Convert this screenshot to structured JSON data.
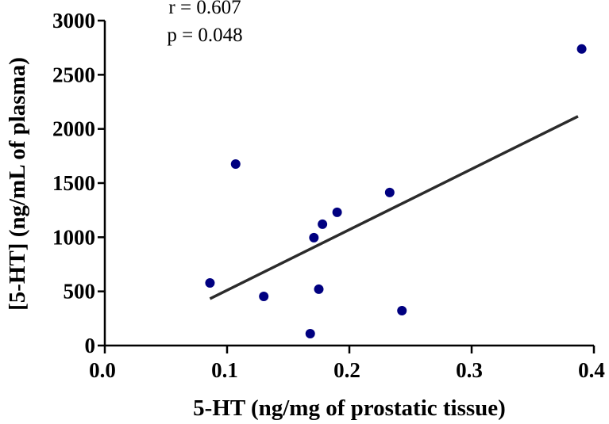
{
  "chart_data": {
    "type": "scatter",
    "xlabel": "5-HT (ng/mg of prostatic tissue)",
    "ylabel": "[5-HT] (ng/mL of plasma)",
    "xlim": [
      0,
      0.4
    ],
    "ylim": [
      0,
      3000
    ],
    "xticks": [
      "0.0",
      "0.1",
      "0.2",
      "0.3",
      "0.4"
    ],
    "xtick_values": [
      0,
      0.1,
      0.2,
      0.3,
      0.4
    ],
    "yticks": [
      "0",
      "500",
      "1000",
      "1500",
      "2000",
      "2500",
      "3000"
    ],
    "ytick_values": [
      0,
      500,
      1000,
      1500,
      2000,
      2500,
      3000
    ],
    "points": [
      {
        "x": 0.086,
        "y": 578
      },
      {
        "x": 0.107,
        "y": 1676
      },
      {
        "x": 0.13,
        "y": 454
      },
      {
        "x": 0.168,
        "y": 110
      },
      {
        "x": 0.171,
        "y": 996
      },
      {
        "x": 0.175,
        "y": 520
      },
      {
        "x": 0.178,
        "y": 1120
      },
      {
        "x": 0.19,
        "y": 1230
      },
      {
        "x": 0.233,
        "y": 1413
      },
      {
        "x": 0.243,
        "y": 322
      },
      {
        "x": 0.39,
        "y": 2738
      }
    ],
    "regression_line": {
      "x": [
        0.086,
        0.387
      ],
      "y": [
        432,
        2116
      ]
    },
    "annotations": [
      "r = 0.607",
      "p = 0.048"
    ],
    "grid": false,
    "colors": {
      "points": "#000080",
      "line": "#2b2b2b"
    }
  }
}
